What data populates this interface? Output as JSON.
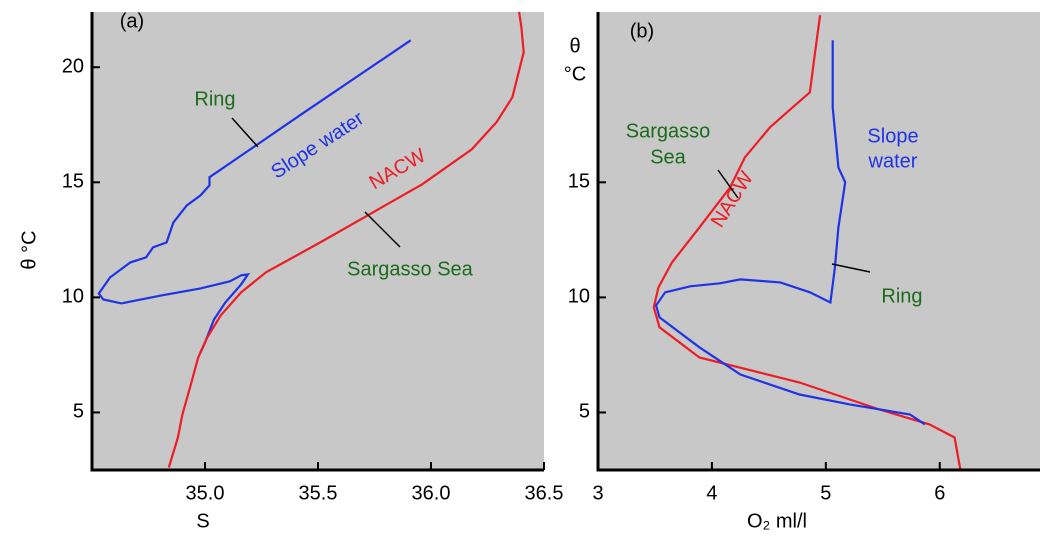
{
  "chart_data": [
    {
      "type": "line",
      "y_label": "θ °C",
      "x_label": "S",
      "annotations": [
        "(a)",
        "Ring",
        "Slope water",
        "NACW",
        "Sargasso Sea"
      ],
      "xlim": [
        34.5,
        36.5
      ],
      "ylim": [
        2.5,
        22.4
      ],
      "xticks": [
        {
          "value": 35,
          "label": "35.0"
        },
        {
          "value": 35.5,
          "label": "35.5"
        },
        {
          "value": 36,
          "label": "36.0"
        },
        {
          "value": 36.5,
          "label": "36.5"
        }
      ],
      "yticks": [
        5,
        10,
        15,
        20
      ],
      "series": [
        {
          "color": "#1f33e6",
          "x": [
            35.91,
            35.42,
            35.2,
            35.02,
            35.02,
            34.98,
            34.92,
            34.86,
            34.83,
            34.77,
            34.74,
            34.67,
            34.58,
            34.53,
            34.55,
            34.63,
            34.81,
            34.98,
            35.11,
            35.16,
            35.19,
            35.16,
            35.09,
            35.04,
            35.0,
            34.98
          ],
          "values": [
            21.17,
            17.91,
            16.43,
            15.22,
            14.87,
            14.43,
            14.0,
            13.26,
            12.39,
            12.17,
            11.74,
            11.52,
            10.87,
            10.17,
            9.91,
            9.74,
            10.09,
            10.39,
            10.7,
            10.96,
            11.0,
            10.57,
            9.78,
            9.04,
            8.04,
            7.61
          ]
        },
        {
          "color": "#ee1c25",
          "x": [
            34.84,
            34.88,
            34.9,
            34.94,
            34.97,
            35.01,
            35.07,
            35.16,
            35.27,
            35.51,
            35.96,
            36.18,
            36.29,
            36.36,
            36.41,
            36.4,
            36.39
          ],
          "values": [
            2.61,
            3.91,
            4.91,
            6.3,
            7.39,
            8.26,
            9.22,
            10.22,
            11.09,
            12.39,
            14.91,
            16.43,
            17.61,
            18.7,
            20.65,
            21.74,
            22.4
          ]
        }
      ]
    },
    {
      "type": "line",
      "y_label": [
        "θ",
        "°C"
      ],
      "x_label": "O₂ ml/l",
      "annotations": [
        "(b)",
        "Sargasso",
        "Sea",
        "NACW",
        "Slope",
        "water",
        "Ring"
      ],
      "xlim": [
        3,
        6.88
      ],
      "ylim": [
        2.5,
        22.4
      ],
      "xticks": [
        3,
        4,
        5,
        6
      ],
      "yticks": [
        5,
        10,
        15
      ],
      "series": [
        {
          "color": "#ee1c25",
          "x": [
            4.95,
            4.9,
            4.86,
            4.73,
            4.51,
            4.29,
            4.16,
            3.89,
            3.65,
            3.53,
            3.49,
            3.54,
            3.89,
            4.77,
            5.47,
            5.91,
            6.13,
            6.18
          ],
          "values": [
            22.26,
            20.43,
            18.91,
            18.35,
            17.39,
            16.09,
            14.78,
            13.04,
            11.52,
            10.43,
            9.57,
            8.7,
            7.39,
            6.3,
            5.13,
            4.48,
            3.91,
            2.52
          ]
        },
        {
          "color": "#1f33e6",
          "x": [
            5.06,
            5.06,
            5.11,
            5.17,
            5.11,
            5.08,
            5.04,
            4.86,
            4.6,
            4.25,
            4.07,
            3.81,
            3.59,
            3.51,
            3.54,
            3.89,
            4.25,
            4.77,
            5.21,
            5.74,
            5.87
          ],
          "values": [
            21.17,
            18.26,
            15.65,
            15.0,
            13.04,
            11.3,
            9.78,
            10.22,
            10.65,
            10.78,
            10.61,
            10.48,
            10.22,
            9.65,
            9.13,
            7.83,
            6.65,
            5.78,
            5.35,
            4.91,
            4.48
          ]
        }
      ]
    }
  ]
}
